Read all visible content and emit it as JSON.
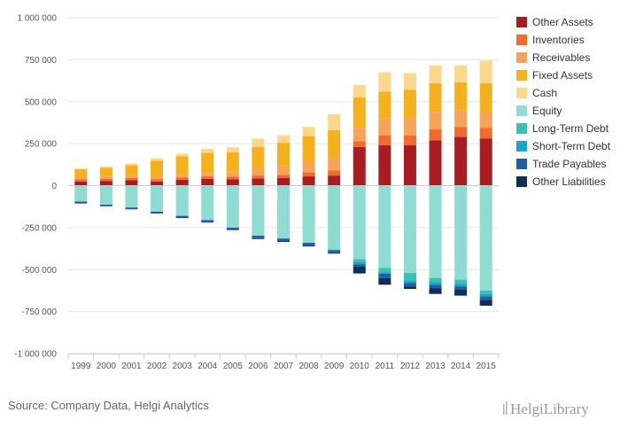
{
  "source": "Source: Company Data, Helgi Analytics",
  "brand": "HelgiLibrary",
  "chart_data": {
    "type": "bar",
    "stacked": true,
    "categories": [
      "1999",
      "2000",
      "2001",
      "2002",
      "2003",
      "2004",
      "2005",
      "2006",
      "2007",
      "2008",
      "2009",
      "2010",
      "2011",
      "2012",
      "2013",
      "2014",
      "2015"
    ],
    "ylim": [
      -1000000,
      1000000
    ],
    "yticks": [
      1000000,
      750000,
      500000,
      250000,
      0,
      -250000,
      -500000,
      -750000,
      -1000000
    ],
    "ytick_labels": [
      "1 000 000",
      "750 000",
      "500 000",
      "250 000",
      "0",
      "-250 000",
      "-500 000",
      "-750 000",
      "-1 000 000"
    ],
    "grid": true,
    "legend_position": "right",
    "series": [
      {
        "name": "Other Assets",
        "color": "#a81c22",
        "values": [
          25000,
          28000,
          32000,
          25000,
          35000,
          40000,
          38000,
          42000,
          45000,
          55000,
          60000,
          230000,
          240000,
          240000,
          270000,
          290000,
          280000
        ]
      },
      {
        "name": "Inventories",
        "color": "#f26b2c",
        "values": [
          12000,
          13000,
          13000,
          14000,
          14000,
          15000,
          16000,
          18000,
          20000,
          25000,
          30000,
          35000,
          60000,
          60000,
          65000,
          60000,
          65000
        ]
      },
      {
        "name": "Receivables",
        "color": "#f9a25a",
        "values": [
          8000,
          10000,
          12000,
          14000,
          16000,
          20000,
          24000,
          40000,
          50000,
          60000,
          75000,
          80000,
          100000,
          100000,
          105000,
          100000,
          90000
        ]
      },
      {
        "name": "Fixed Assets",
        "color": "#f5b01d",
        "values": [
          52000,
          55000,
          65000,
          95000,
          110000,
          120000,
          120000,
          130000,
          140000,
          155000,
          165000,
          180000,
          160000,
          170000,
          170000,
          165000,
          175000
        ]
      },
      {
        "name": "Cash",
        "color": "#fcd88d",
        "values": [
          5000,
          8000,
          10000,
          15000,
          15000,
          25000,
          30000,
          50000,
          45000,
          55000,
          95000,
          75000,
          115000,
          100000,
          105000,
          100000,
          135000
        ]
      },
      {
        "name": "Equity",
        "color": "#8fdcd2",
        "values": [
          -95000,
          -113000,
          -130000,
          -155000,
          -180000,
          -205000,
          -250000,
          -298000,
          -315000,
          -340000,
          -380000,
          -438000,
          -490000,
          -520000,
          -550000,
          -560000,
          -625000
        ]
      },
      {
        "name": "Long-Term Debt",
        "color": "#37c3b1",
        "values": [
          0,
          0,
          0,
          0,
          0,
          0,
          0,
          0,
          0,
          0,
          -5000,
          -15000,
          -25000,
          -45000,
          -25000,
          -25000,
          -20000
        ]
      },
      {
        "name": "Short-Term Debt",
        "color": "#17a6c9",
        "values": [
          0,
          0,
          0,
          0,
          0,
          0,
          0,
          0,
          0,
          0,
          0,
          -15000,
          -10000,
          -15000,
          -15000,
          -15000,
          -15000
        ]
      },
      {
        "name": "Trade Payables",
        "color": "#1e5fa8",
        "values": [
          -8000,
          -7000,
          -8000,
          -8000,
          -10000,
          -12000,
          -12000,
          -15000,
          -15000,
          -17000,
          -15000,
          -15000,
          -25000,
          -20000,
          -20000,
          -20000,
          -20000
        ]
      },
      {
        "name": "Other Liabilities",
        "color": "#0c2f5a",
        "values": [
          -3000,
          -3000,
          -3000,
          -3000,
          -3000,
          -3000,
          -3000,
          -5000,
          -5000,
          -5000,
          -5000,
          -40000,
          -40000,
          -15000,
          -35000,
          -35000,
          -35000
        ]
      }
    ]
  }
}
